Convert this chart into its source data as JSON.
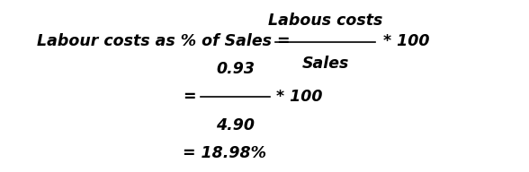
{
  "bg_color": "#ffffff",
  "text_color": "#000000",
  "line1_left": "Labour costs as % of Sales = ",
  "line1_numerator": "Labous costs",
  "line1_denominator": "Sales",
  "line1_right": "* 100",
  "line2_eq": "=",
  "line2_numerator": "0.93",
  "line2_denominator": "4.90",
  "line2_right": "* 100",
  "line3": "= 18.98%",
  "fs": 12.5,
  "fig_width": 5.88,
  "fig_height": 1.92,
  "dpi": 100
}
